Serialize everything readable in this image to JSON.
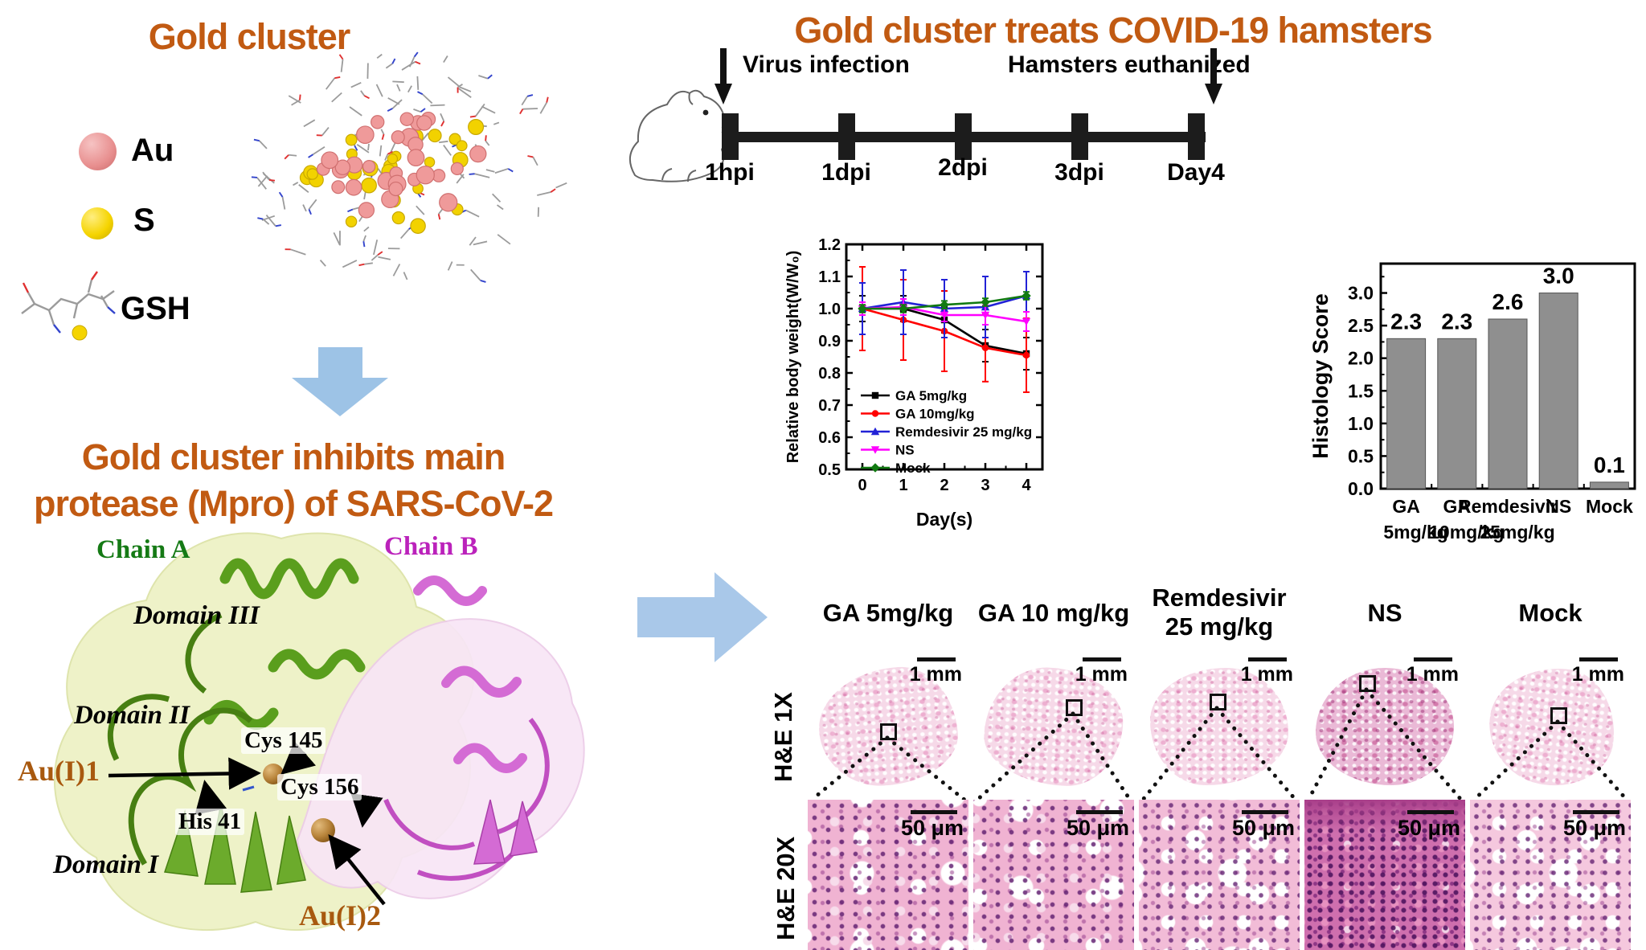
{
  "colors": {
    "title_orange": "#c15a12",
    "arrow_blue": "#9dc3e6",
    "chain_a_green": "#157a15",
    "chain_b_magenta": "#bb22bb",
    "au_label_brown": "#a8590f",
    "bar_gray": "#8f8f8f",
    "au_sphere_pink": "#e88f8f",
    "s_sphere_yellow": "#f5d400"
  },
  "left": {
    "title_cluster": "Gold cluster",
    "legend": {
      "au": "Au",
      "s": "S",
      "gsh": "GSH"
    },
    "title_mpro_line1": "Gold cluster inhibits main",
    "title_mpro_line2": "protease (Mpro) of SARS-CoV-2",
    "protein_labels": {
      "chain_a": "Chain A",
      "chain_b": "Chain B",
      "domain1": "Domain I",
      "domain2": "Domain II",
      "domain3": "Domain III",
      "au1": "Au(I)1",
      "au2": "Au(I)2",
      "cys145": "Cys 145",
      "cys156": "Cys 156",
      "his41": "His 41"
    }
  },
  "right": {
    "title": "Gold cluster treats COVID-19 hamsters",
    "timeline": {
      "virus_infection": "Virus infection",
      "hamsters_euthanized": "Hamsters euthanized",
      "ticks": [
        "1hpi",
        "1dpi",
        "2dpi",
        "3dpi",
        "Day4"
      ]
    },
    "histology": {
      "row_labels": [
        "H&E 1X",
        "H&E 20X"
      ],
      "columns": [
        {
          "l1": "GA 5mg/kg",
          "l2": ""
        },
        {
          "l1": "GA 10 mg/kg",
          "l2": ""
        },
        {
          "l1": "Remdesivir",
          "l2": "25 mg/kg"
        },
        {
          "l1": "NS",
          "l2": ""
        },
        {
          "l1": "Mock",
          "l2": ""
        }
      ],
      "scalebar_1x": "1 mm",
      "scalebar_20x": "50 μm"
    }
  },
  "chart_data": [
    {
      "type": "line",
      "xlabel": "Day(s)",
      "ylabel": "Relative body weight(W/W₀)",
      "x": [
        0,
        1,
        2,
        3,
        4
      ],
      "ylim": [
        0.5,
        1.2
      ],
      "yticks": [
        0.5,
        0.6,
        0.7,
        0.8,
        0.9,
        1.0,
        1.1,
        1.2
      ],
      "grid": false,
      "legend_position": "lower left",
      "series": [
        {
          "name": "GA 5mg/kg",
          "color": "#000000",
          "marker": "square",
          "values": [
            1.0,
            1.0,
            0.965,
            0.885,
            0.86
          ],
          "errors": [
            0.04,
            0.04,
            0.04,
            0.05,
            0.05
          ]
        },
        {
          "name": "GA 10mg/kg",
          "color": "#ff0000",
          "marker": "circle",
          "values": [
            1.0,
            0.965,
            0.93,
            0.878,
            0.855
          ],
          "errors": [
            0.13,
            0.125,
            0.125,
            0.105,
            0.115
          ]
        },
        {
          "name": "Remdesivir 25 mg/kg",
          "color": "#2222d6",
          "marker": "triangle-up",
          "values": [
            1.0,
            1.02,
            1.0,
            1.005,
            1.04
          ],
          "errors": [
            0.08,
            0.1,
            0.09,
            0.095,
            0.075
          ]
        },
        {
          "name": "NS",
          "color": "#ff00ff",
          "marker": "triangle-down",
          "values": [
            1.0,
            1.005,
            0.98,
            0.98,
            0.96
          ],
          "errors": [
            0.02,
            0.025,
            0.02,
            0.03,
            0.03
          ]
        },
        {
          "name": "Mock",
          "color": "#117a11",
          "marker": "diamond",
          "values": [
            1.0,
            1.0,
            1.012,
            1.02,
            1.04
          ],
          "errors": [
            0.012,
            0.012,
            0.012,
            0.012,
            0.012
          ]
        }
      ]
    },
    {
      "type": "bar",
      "ylabel": "Histology Score",
      "categories_line1": [
        "GA",
        "GA",
        "Remdesivir",
        "NS",
        "Mock"
      ],
      "categories_line2": [
        "5mg/kg",
        "10mg/kg",
        "25mg/kg",
        "",
        ""
      ],
      "values": [
        2.3,
        2.3,
        2.6,
        3.0,
        0.1
      ],
      "value_labels": [
        "2.3",
        "2.3",
        "2.6",
        "3.0",
        "0.1"
      ],
      "bar_color": "#8f8f8f",
      "ylim": [
        0,
        3.45
      ],
      "yticks": [
        0.0,
        0.5,
        1.0,
        1.5,
        2.0,
        2.5,
        3.0
      ],
      "grid": false
    }
  ]
}
